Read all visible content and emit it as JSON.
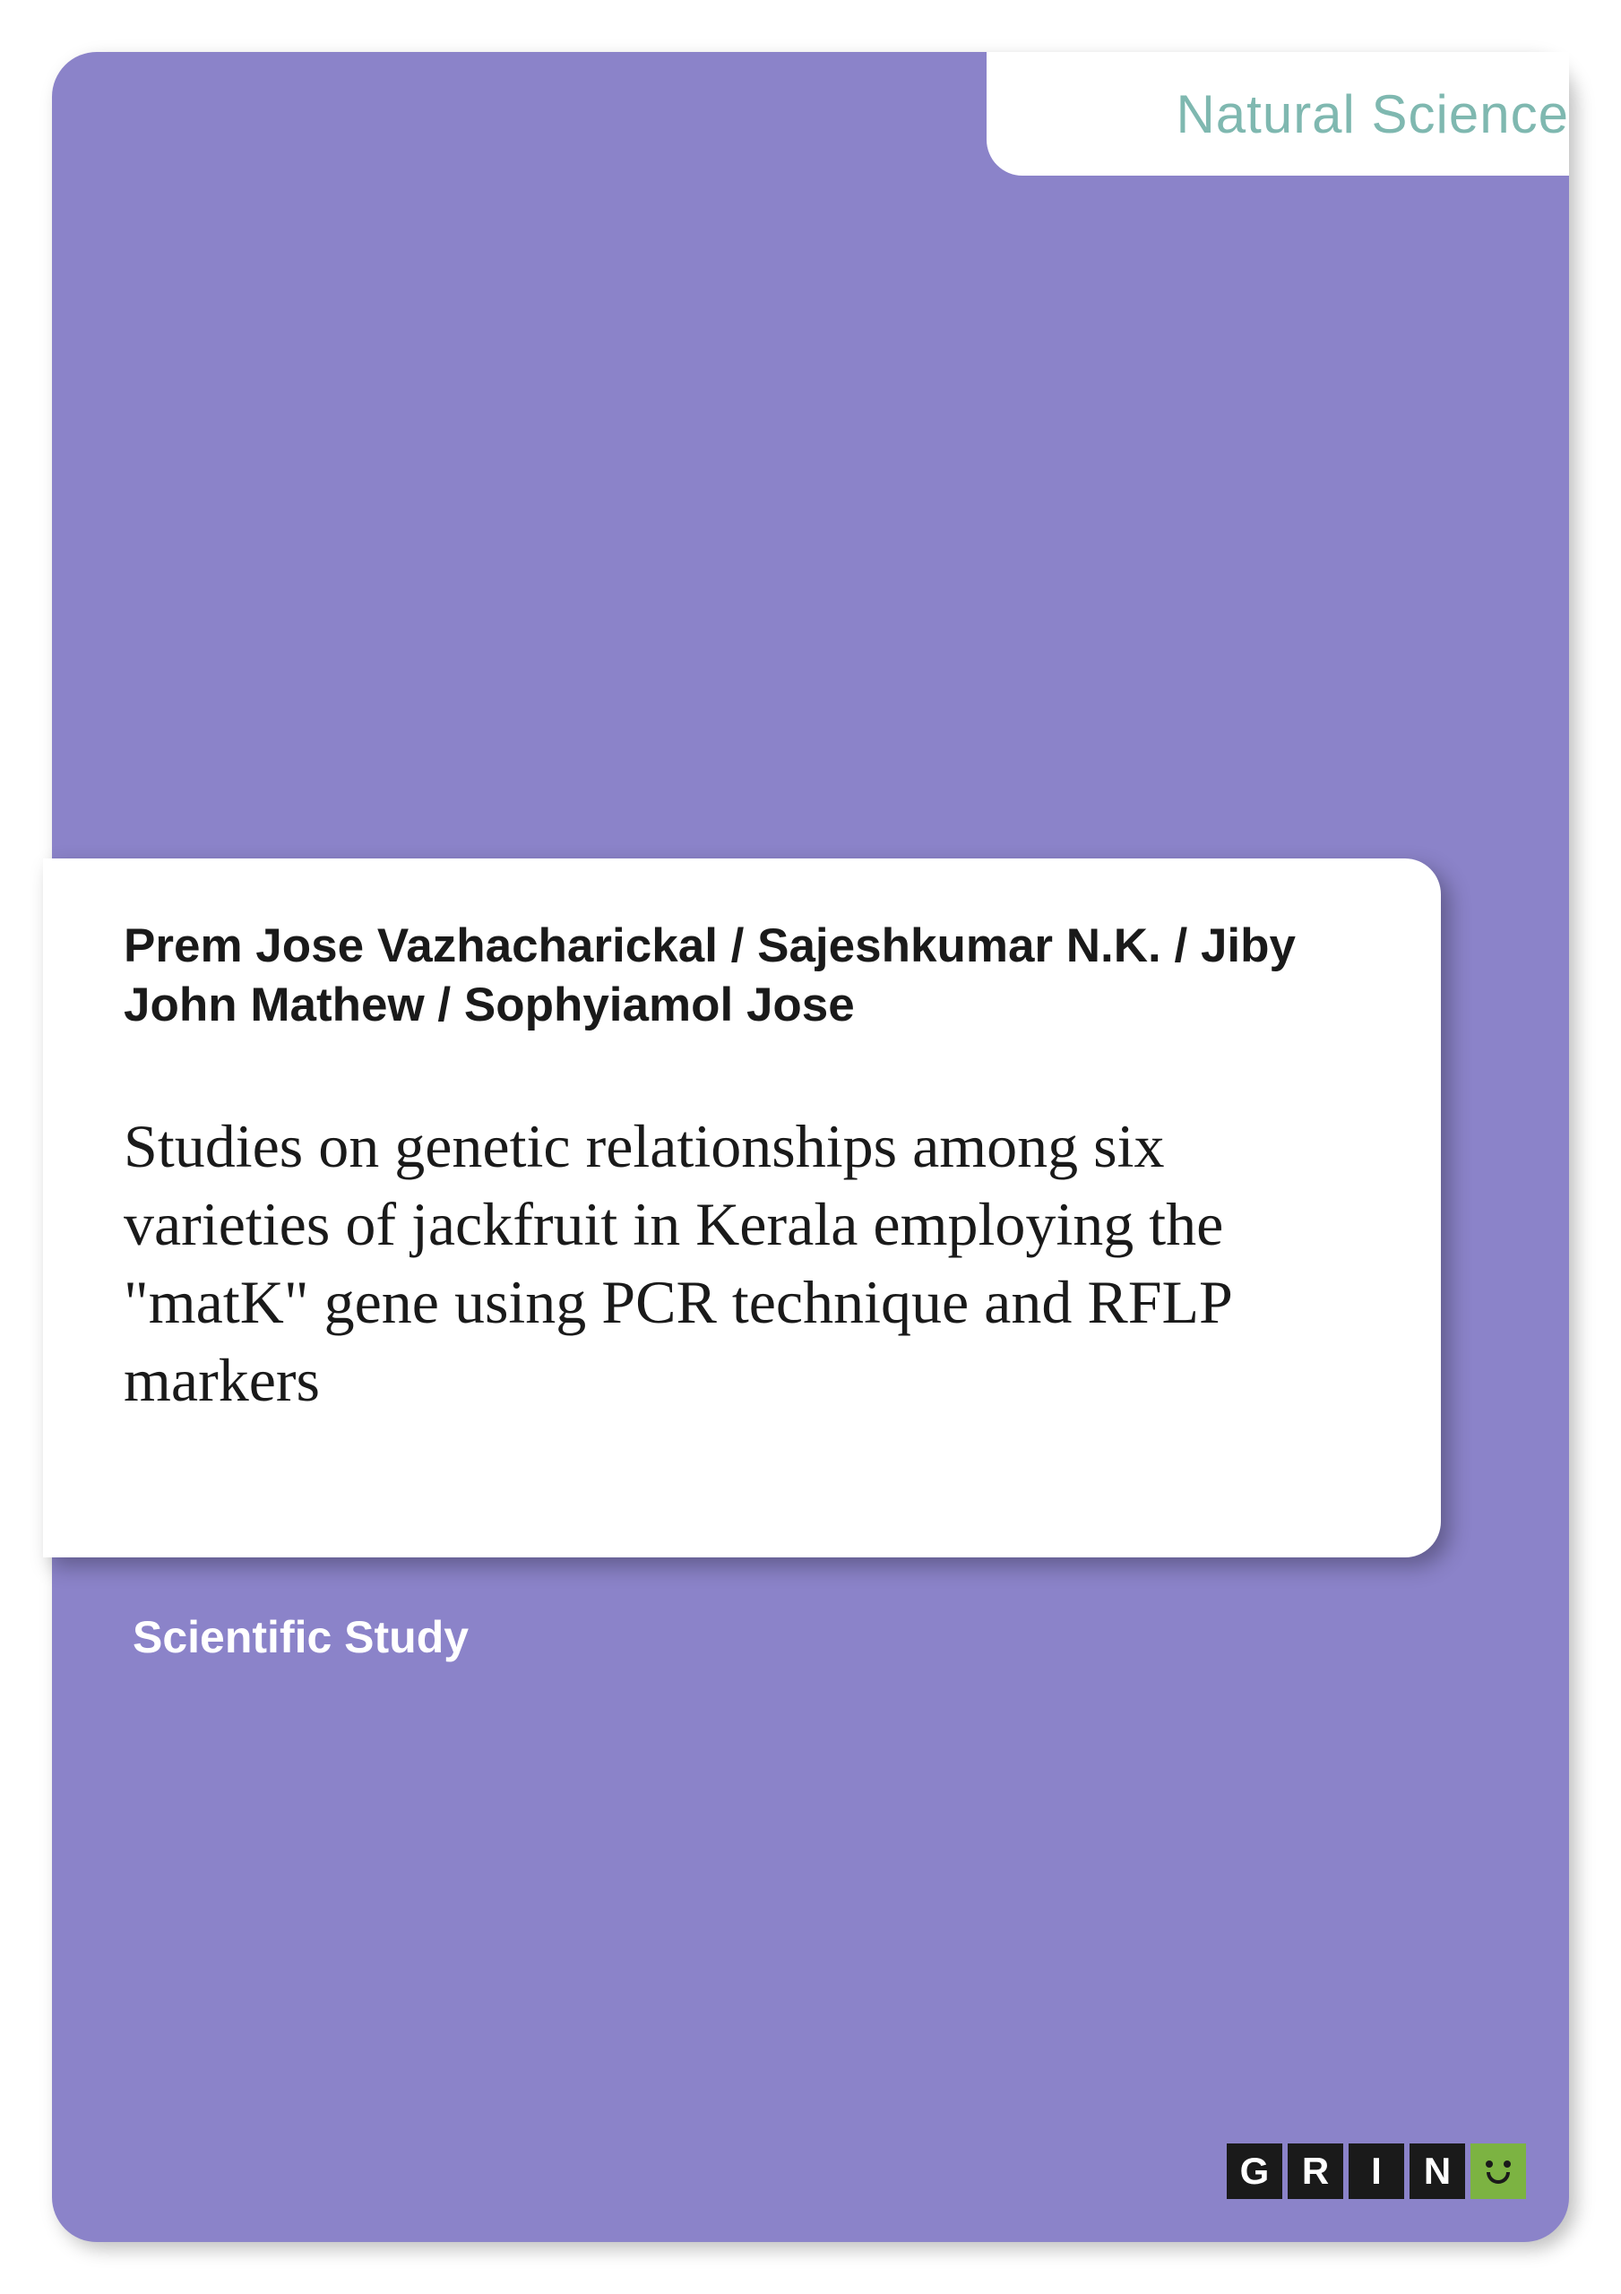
{
  "cover": {
    "background_color": "#8b83c9",
    "border_radius": 50,
    "category": {
      "text": "Natural Science",
      "color": "#7fb8b0",
      "fontsize": 60,
      "background": "#ffffff"
    },
    "authors": "Prem Jose Vazhacharickal / Sajeshkumar N.K. / Jiby John Mathew / Sophyiamol Jose",
    "authors_fontsize": 53,
    "authors_color": "#1a1a1a",
    "title": "Studies on genetic relationships among six varieties of jackfruit in Kerala employing the \"matK\" gene using PCR technique and RFLP markers",
    "title_fontsize": 68,
    "title_color": "#1a1a1a",
    "title_panel_background": "#ffffff",
    "study_type": "Scientific Study",
    "study_type_fontsize": 50,
    "study_type_color": "#ffffff"
  },
  "logo": {
    "letters": [
      "G",
      "R",
      "I",
      "N"
    ],
    "letter_background": "#1a1a1a",
    "letter_color": "#ffffff",
    "smiley_background": "#7cb342",
    "smiley_face_color": "#1a1a1a"
  }
}
